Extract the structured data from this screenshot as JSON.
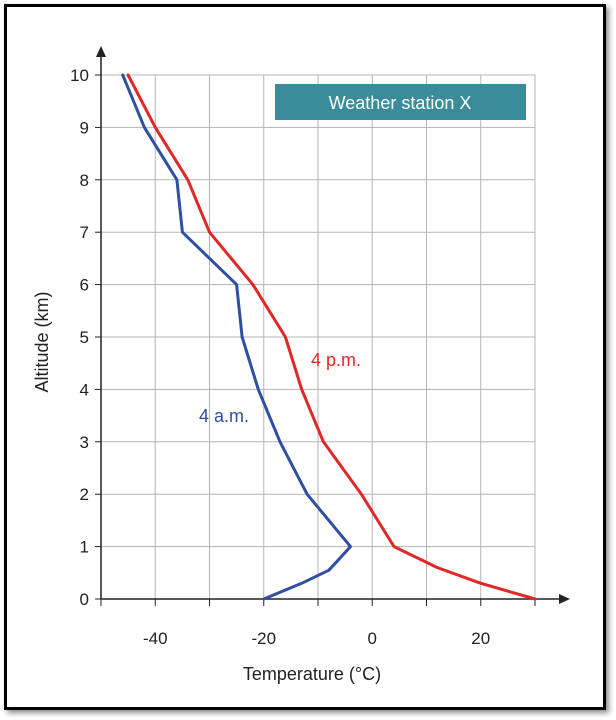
{
  "chart_data": {
    "type": "line",
    "title": "Weather station X",
    "xlabel": "Temperature (°C)",
    "ylabel": "Altitude (km)",
    "xlim": [
      -50,
      30
    ],
    "ylim": [
      0,
      10
    ],
    "x_ticks": [
      -40,
      -20,
      0,
      20
    ],
    "x_tick_labels": [
      "-40",
      "-20",
      "0",
      "20"
    ],
    "y_ticks": [
      0,
      1,
      2,
      3,
      4,
      5,
      6,
      7,
      8,
      9,
      10
    ],
    "y_tick_labels": [
      "0",
      "1",
      "2",
      "3",
      "4",
      "5",
      "6",
      "7",
      "8",
      "9",
      "10"
    ],
    "grid": true,
    "series": [
      {
        "name": "4 a.m.",
        "color": "#2f4fa2",
        "points": [
          [
            -20,
            0
          ],
          [
            -13,
            0.3
          ],
          [
            -8,
            0.55
          ],
          [
            -4,
            1
          ],
          [
            -12,
            2
          ],
          [
            -17,
            3
          ],
          [
            -21,
            4
          ],
          [
            -24,
            5
          ],
          [
            -25,
            6
          ],
          [
            -35,
            7
          ],
          [
            -36,
            8
          ],
          [
            -42,
            9
          ],
          [
            -46,
            10
          ]
        ]
      },
      {
        "name": "4 p.m.",
        "color": "#e02828",
        "points": [
          [
            30,
            0
          ],
          [
            20,
            0.3
          ],
          [
            12,
            0.6
          ],
          [
            4,
            1
          ],
          [
            -2,
            2
          ],
          [
            -9,
            3
          ],
          [
            -13,
            4
          ],
          [
            -16,
            5
          ],
          [
            -22,
            6
          ],
          [
            -30,
            7
          ],
          [
            -34,
            8
          ],
          [
            -40,
            9
          ],
          [
            -45,
            10
          ]
        ]
      }
    ],
    "banner_color": "#3a8c9a"
  }
}
